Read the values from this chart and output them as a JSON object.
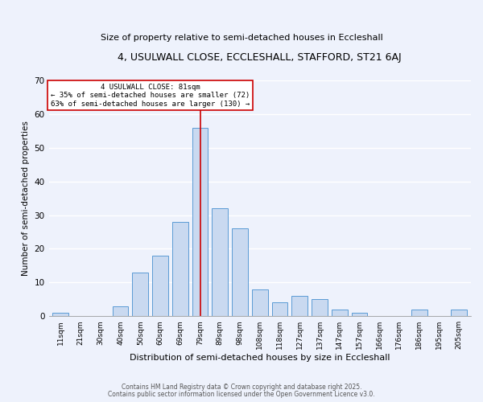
{
  "title": "4, USULWALL CLOSE, ECCLESHALL, STAFFORD, ST21 6AJ",
  "subtitle": "Size of property relative to semi-detached houses in Eccleshall",
  "xlabel": "Distribution of semi-detached houses by size in Eccleshall",
  "ylabel": "Number of semi-detached properties",
  "bar_labels": [
    "11sqm",
    "21sqm",
    "30sqm",
    "40sqm",
    "50sqm",
    "60sqm",
    "69sqm",
    "79sqm",
    "89sqm",
    "98sqm",
    "108sqm",
    "118sqm",
    "127sqm",
    "137sqm",
    "147sqm",
    "157sqm",
    "166sqm",
    "176sqm",
    "186sqm",
    "195sqm",
    "205sqm"
  ],
  "bar_heights": [
    1,
    0,
    0,
    3,
    13,
    18,
    28,
    56,
    32,
    26,
    8,
    4,
    6,
    5,
    2,
    1,
    0,
    0,
    2,
    0,
    2
  ],
  "bar_color": "#c9d9f0",
  "bar_edge_color": "#5b9bd5",
  "vline_x_index": 7,
  "vline_color": "#cc0000",
  "annotation_title": "4 USULWALL CLOSE: 81sqm",
  "annotation_line1": "← 35% of semi-detached houses are smaller (72)",
  "annotation_line2": "63% of semi-detached houses are larger (130) →",
  "annotation_box_color": "#cc0000",
  "ylim": [
    0,
    70
  ],
  "yticks": [
    0,
    10,
    20,
    30,
    40,
    50,
    60,
    70
  ],
  "background_color": "#eef2fc",
  "footer1": "Contains HM Land Registry data © Crown copyright and database right 2025.",
  "footer2": "Contains public sector information licensed under the Open Government Licence v3.0."
}
